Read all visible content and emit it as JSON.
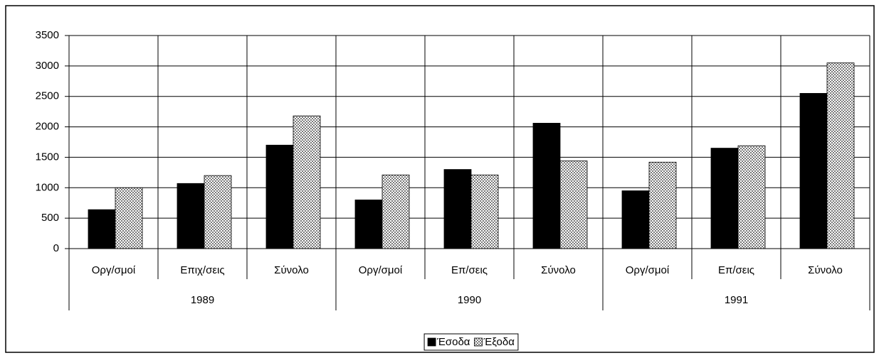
{
  "chart_data": {
    "type": "bar",
    "groups": [
      {
        "label": "1989",
        "categories": [
          "Οργ/σμοί",
          "Επιχ/σεις",
          "Σύνολο"
        ]
      },
      {
        "label": "1990",
        "categories": [
          "Οργ/σμοί",
          "Επ/σεις",
          "Σύνολο"
        ]
      },
      {
        "label": "1991",
        "categories": [
          "Οργ/σμοί",
          "Επ/σεις",
          "Σύνολο"
        ]
      }
    ],
    "series": [
      {
        "name": "Έσοδα",
        "color": "#000000",
        "values": [
          640,
          1070,
          1700,
          800,
          1300,
          2060,
          950,
          1650,
          2550
        ]
      },
      {
        "name": "Έξοδα",
        "color": "#7a7a7a",
        "values": [
          1000,
          1200,
          2180,
          1210,
          1210,
          1440,
          1420,
          1690,
          3050
        ]
      }
    ],
    "ylim": [
      0,
      3500
    ],
    "yticks": [
      0,
      500,
      1000,
      1500,
      2000,
      2500,
      3000,
      3500
    ],
    "grid": true,
    "legend": "bottom"
  }
}
